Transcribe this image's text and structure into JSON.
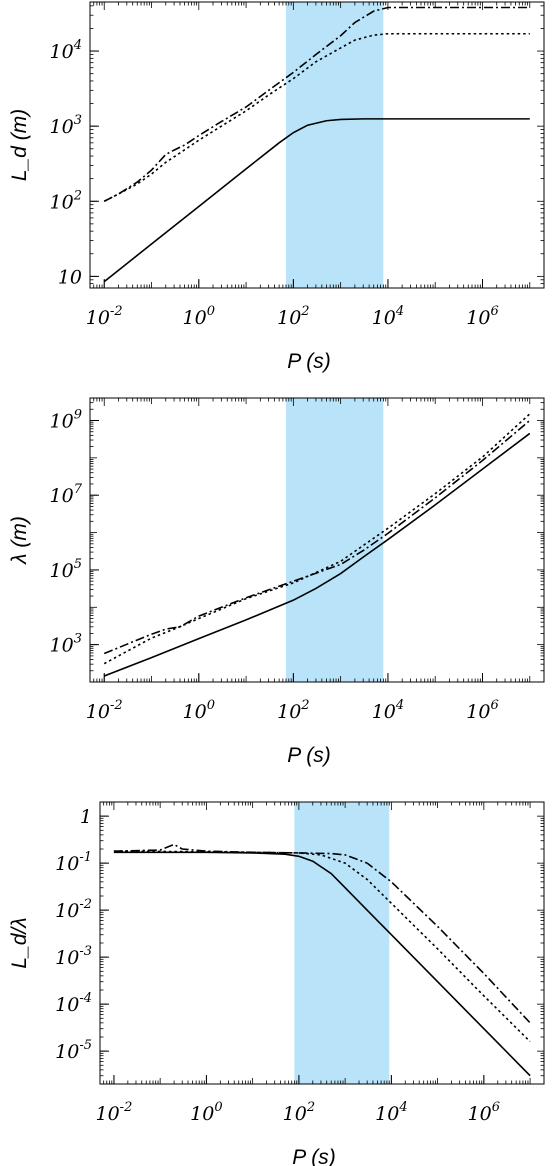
{
  "chart_data": [
    {
      "type": "line",
      "xscale": "log",
      "yscale": "log",
      "xlabel": "P (s)",
      "ylabel": "L_d (m)",
      "xlim": [
        0.005,
        20000000
      ],
      "ylim": [
        7,
        45000
      ],
      "xticks": [
        0.01,
        1,
        100,
        10000,
        1000000
      ],
      "xtick_labels": [
        {
          "base": "10",
          "exp": "-2"
        },
        {
          "base": "10",
          "exp": "0"
        },
        {
          "base": "10",
          "exp": "2"
        },
        {
          "base": "10",
          "exp": "4"
        },
        {
          "base": "10",
          "exp": "6"
        }
      ],
      "yticks": [
        10,
        100,
        1000,
        10000
      ],
      "ytick_labels": [
        {
          "base": "10",
          "exp": ""
        },
        {
          "base": "10",
          "exp": "2"
        },
        {
          "base": "10",
          "exp": "3"
        },
        {
          "base": "10",
          "exp": "4"
        }
      ],
      "shaded_region": {
        "x": [
          70,
          8000
        ],
        "color": "#b8e3f9"
      },
      "series": [
        {
          "style": "solid",
          "points": [
            [
              0.01,
              8.5
            ],
            [
              0.1,
              27
            ],
            [
              1,
              85
            ],
            [
              10,
              270
            ],
            [
              50,
              600
            ],
            [
              100,
              820
            ],
            [
              200,
              1030
            ],
            [
              500,
              1180
            ],
            [
              1000,
              1230
            ],
            [
              3000,
              1250
            ],
            [
              10000,
              1250
            ],
            [
              100000,
              1250
            ],
            [
              1000000,
              1250
            ],
            [
              10000000,
              1250
            ]
          ]
        },
        {
          "style": "dotted",
          "points": [
            [
              0.01,
              100
            ],
            [
              0.02,
              125
            ],
            [
              0.05,
              170
            ],
            [
              0.1,
              230
            ],
            [
              0.2,
              330
            ],
            [
              0.4,
              440
            ],
            [
              1,
              650
            ],
            [
              3,
              1000
            ],
            [
              10,
              1600
            ],
            [
              30,
              2600
            ],
            [
              100,
              4300
            ],
            [
              300,
              7200
            ],
            [
              1000,
              11000
            ],
            [
              2000,
              14000
            ],
            [
              5000,
              16300
            ],
            [
              10000,
              17000
            ],
            [
              100000,
              17000
            ],
            [
              1000000,
              17000
            ],
            [
              10000000,
              17000
            ]
          ]
        },
        {
          "style": "dashdot",
          "points": [
            [
              0.01,
              100
            ],
            [
              0.02,
              125
            ],
            [
              0.05,
              180
            ],
            [
              0.1,
              260
            ],
            [
              0.2,
              420
            ],
            [
              0.3,
              480
            ],
            [
              0.5,
              560
            ],
            [
              1,
              750
            ],
            [
              3,
              1150
            ],
            [
              10,
              1800
            ],
            [
              30,
              3000
            ],
            [
              100,
              5200
            ],
            [
              300,
              9000
            ],
            [
              1000,
              16000
            ],
            [
              2000,
              24000
            ],
            [
              5000,
              34000
            ],
            [
              10000,
              38000
            ],
            [
              100000,
              38000
            ],
            [
              1000000,
              38000
            ],
            [
              10000000,
              38000
            ]
          ]
        }
      ]
    },
    {
      "type": "line",
      "xscale": "log",
      "yscale": "log",
      "xlabel": "P (s)",
      "ylabel": "λ (m)",
      "xlim": [
        0.005,
        20000000
      ],
      "ylim": [
        100,
        4000000000
      ],
      "xticks": [
        0.01,
        1,
        100,
        10000,
        1000000
      ],
      "xtick_labels": [
        {
          "base": "10",
          "exp": "-2"
        },
        {
          "base": "10",
          "exp": "0"
        },
        {
          "base": "10",
          "exp": "2"
        },
        {
          "base": "10",
          "exp": "4"
        },
        {
          "base": "10",
          "exp": "6"
        }
      ],
      "yticks": [
        1000,
        100000,
        10000000,
        1000000000
      ],
      "ytick_labels": [
        {
          "base": "10",
          "exp": "3"
        },
        {
          "base": "10",
          "exp": "5"
        },
        {
          "base": "10",
          "exp": "7"
        },
        {
          "base": "10",
          "exp": "9"
        }
      ],
      "shaded_region": {
        "x": [
          70,
          8000
        ],
        "color": "#b8e3f9"
      },
      "series": [
        {
          "style": "solid",
          "points": [
            [
              0.01,
              145
            ],
            [
              0.1,
              450
            ],
            [
              1,
              1450
            ],
            [
              10,
              4600
            ],
            [
              100,
              15500
            ],
            [
              300,
              32000
            ],
            [
              1000,
              80000
            ],
            [
              3000,
              220000
            ],
            [
              10000,
              650000
            ],
            [
              100000,
              5500000
            ],
            [
              1000000,
              50000000
            ],
            [
              10000000,
              450000000
            ]
          ]
        },
        {
          "style": "dotted",
          "points": [
            [
              0.01,
              310
            ],
            [
              0.1,
              1500
            ],
            [
              0.3,
              2600
            ],
            [
              1,
              5000
            ],
            [
              10,
              17000
            ],
            [
              100,
              45000
            ],
            [
              1000,
              170000
            ],
            [
              3000,
              450000
            ],
            [
              10000,
              1300000
            ],
            [
              100000,
              11000000
            ],
            [
              1000000,
              105000000
            ],
            [
              10000000,
              1500000000
            ]
          ]
        },
        {
          "style": "dashdot",
          "points": [
            [
              0.01,
              580
            ],
            [
              0.1,
              1900
            ],
            [
              0.2,
              2600
            ],
            [
              0.4,
              3000
            ],
            [
              1,
              5800
            ],
            [
              10,
              18000
            ],
            [
              100,
              50000
            ],
            [
              1000,
              140000
            ],
            [
              3000,
              330000
            ],
            [
              10000,
              950000
            ],
            [
              100000,
              8500000
            ],
            [
              1000000,
              85000000
            ],
            [
              10000000,
              1000000000
            ]
          ]
        }
      ]
    },
    {
      "type": "line",
      "xscale": "log",
      "yscale": "log",
      "xlabel": "P (s)",
      "ylabel": "L_d/λ",
      "xlim": [
        0.005,
        20000000
      ],
      "ylim": [
        2e-06,
        2
      ],
      "xticks": [
        0.01,
        1,
        100,
        10000,
        1000000
      ],
      "xtick_labels": [
        {
          "base": "10",
          "exp": "-2"
        },
        {
          "base": "10",
          "exp": "0"
        },
        {
          "base": "10",
          "exp": "2"
        },
        {
          "base": "10",
          "exp": "4"
        },
        {
          "base": "10",
          "exp": "6"
        }
      ],
      "yticks": [
        1,
        0.1,
        0.01,
        0.001,
        0.0001,
        1e-05
      ],
      "ytick_labels": [
        {
          "base": "1",
          "exp": ""
        },
        {
          "base": "10",
          "exp": "-1"
        },
        {
          "base": "10",
          "exp": "-2"
        },
        {
          "base": "10",
          "exp": "-3"
        },
        {
          "base": "10",
          "exp": "-4"
        },
        {
          "base": "10",
          "exp": "-5"
        }
      ],
      "shaded_region": {
        "x": [
          80,
          9000
        ],
        "color": "#b8e3f9"
      },
      "series": [
        {
          "style": "solid",
          "points": [
            [
              0.01,
              0.17
            ],
            [
              1,
              0.17
            ],
            [
              10,
              0.165
            ],
            [
              50,
              0.155
            ],
            [
              100,
              0.14
            ],
            [
              200,
              0.11
            ],
            [
              500,
              0.06
            ],
            [
              1000,
              0.03
            ],
            [
              3000,
              0.01
            ],
            [
              10000,
              0.003
            ],
            [
              100000,
              0.0003
            ],
            [
              1000000,
              3e-05
            ],
            [
              10000000,
              3e-06
            ]
          ]
        },
        {
          "style": "dotted",
          "points": [
            [
              0.01,
              0.18
            ],
            [
              1,
              0.175
            ],
            [
              10,
              0.17
            ],
            [
              100,
              0.165
            ],
            [
              300,
              0.15
            ],
            [
              1000,
              0.1
            ],
            [
              3000,
              0.045
            ],
            [
              10000,
              0.014
            ],
            [
              100000,
              0.0015
            ],
            [
              1000000,
              0.00015
            ],
            [
              10000000,
              1.6e-05
            ]
          ]
        },
        {
          "style": "dashdot",
          "points": [
            [
              0.01,
              0.18
            ],
            [
              0.1,
              0.19
            ],
            [
              0.2,
              0.25
            ],
            [
              0.3,
              0.2
            ],
            [
              1,
              0.18
            ],
            [
              10,
              0.17
            ],
            [
              100,
              0.165
            ],
            [
              500,
              0.16
            ],
            [
              1000,
              0.15
            ],
            [
              3000,
              0.1
            ],
            [
              10000,
              0.04
            ],
            [
              100000,
              0.0045
            ],
            [
              1000000,
              0.00045
            ],
            [
              10000000,
              4e-05
            ]
          ]
        }
      ]
    }
  ]
}
